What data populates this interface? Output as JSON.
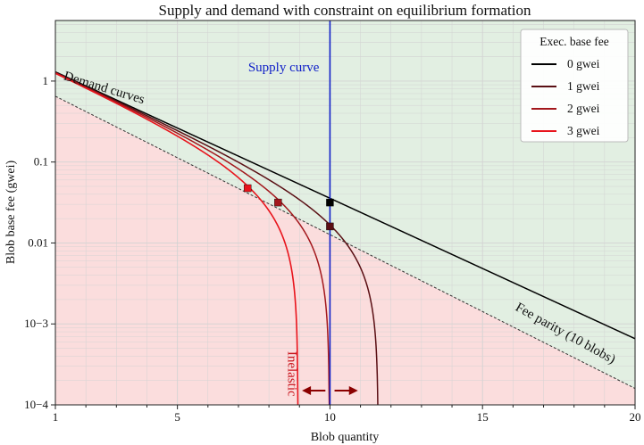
{
  "chart_data": {
    "type": "line",
    "title": "Supply and demand with constraint on equilibrium formation",
    "xlabel": "Blob quantity",
    "ylabel": "Blob base fee (gwei)",
    "xlim": [
      1,
      20
    ],
    "ylim": [
      0.0001,
      5.6
    ],
    "yscale": "log",
    "grid": true,
    "xticks": [
      {
        "value": 1,
        "label": "1"
      },
      {
        "value": 5,
        "label": "5"
      },
      {
        "value": 10,
        "label": "10"
      },
      {
        "value": 15,
        "label": "15"
      },
      {
        "value": 20,
        "label": "20"
      }
    ],
    "yticks": [
      {
        "value": 1,
        "label": "1"
      },
      {
        "value": 0.1,
        "label": "0.1"
      },
      {
        "value": 0.01,
        "label": "0.01"
      },
      {
        "value": 0.001,
        "label": "10−3"
      },
      {
        "value": 0.0001,
        "label": "10−4"
      }
    ],
    "legend": {
      "title": "Exec. base fee",
      "placement": "top-right",
      "entries": [
        {
          "label": "0 gwei",
          "color": "#000000"
        },
        {
          "label": "1 gwei",
          "color": "#5a0f14"
        },
        {
          "label": "2 gwei",
          "color": "#a3171c"
        },
        {
          "label": "3 gwei",
          "color": "#e8141c"
        }
      ]
    },
    "demand_model": {
      "reference_fee": 1.3,
      "decay_per_blob": 0.5,
      "parity_blobs": 10
    },
    "series": [
      {
        "exec_fee": 0,
        "color": "#000000"
      },
      {
        "exec_fee": 1,
        "color": "#5a0f14"
      },
      {
        "exec_fee": 2,
        "color": "#a3171c"
      },
      {
        "exec_fee": 3,
        "color": "#e8141c"
      }
    ],
    "supply_curve": {
      "x": 10,
      "label": "Supply curve",
      "color": "#1020c8"
    },
    "fee_parity": {
      "label": "Fee parity (10 blobs)"
    },
    "equilibrium_points": [
      {
        "x": 10,
        "y": 0.0316,
        "color": "#000000"
      },
      {
        "x": 10,
        "y": 0.016,
        "color": "#5a0f14"
      },
      {
        "x": 8.3,
        "y": 0.0316,
        "color": "#a3171c"
      },
      {
        "x": 7.3,
        "y": 0.0475,
        "color": "#e8141c"
      }
    ],
    "annotations": {
      "demand_curves": "Demand curves",
      "inelastic": "Inelastic"
    },
    "arrows": {
      "y": 6e-05,
      "from": 10,
      "left_to": 9.2,
      "right_to": 10.8,
      "color": "#8b0000"
    },
    "regions": {
      "above_parity_color": "#e2efe2",
      "below_parity_color": "#fbdddd"
    }
  }
}
